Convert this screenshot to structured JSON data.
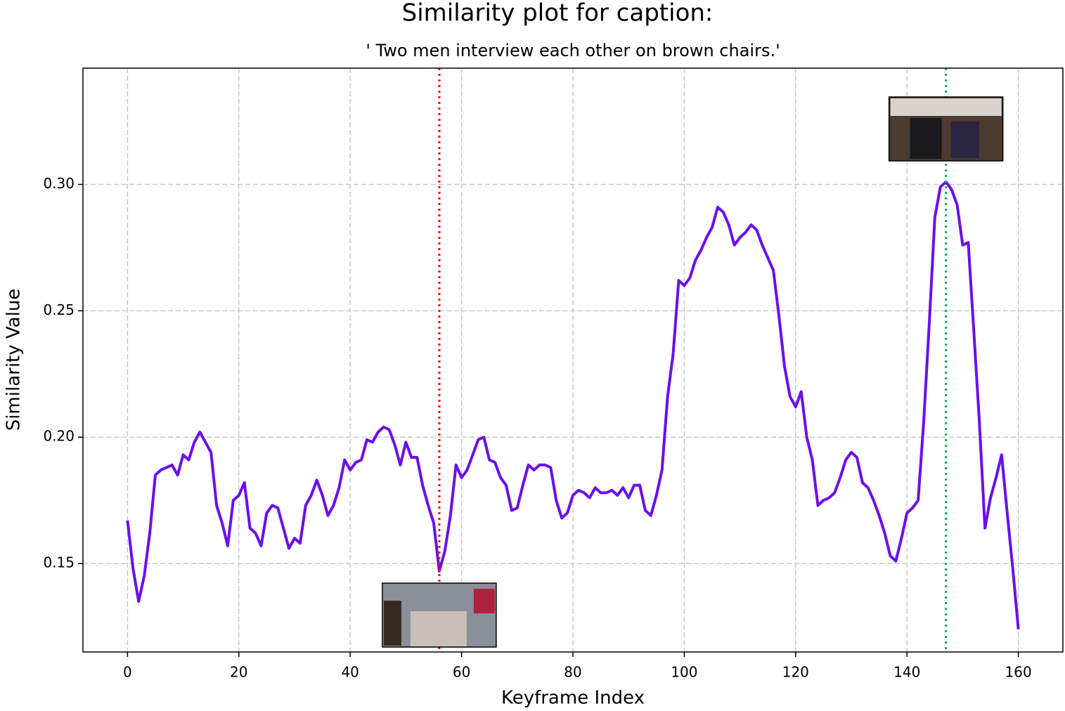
{
  "chart_data": {
    "type": "line",
    "title": "Similarity plot for caption:",
    "subtitle": "'  Two men interview each other on brown chairs.'",
    "x_label": "Keyframe Index",
    "y_label": "Similarity Value",
    "xlim": [
      -8,
      168
    ],
    "ylim": [
      0.115,
      0.346
    ],
    "xticks": [
      0,
      20,
      40,
      60,
      80,
      100,
      120,
      140,
      160
    ],
    "yticks": [
      0.15,
      {
        "value": 0.2,
        "label": "0.20"
      },
      0.25,
      {
        "value": 0.3,
        "label": "0.30"
      }
    ],
    "grid": true,
    "series": [
      {
        "color": "#6a0ff0",
        "values": [
          0.167,
          0.148,
          0.135,
          0.145,
          0.162,
          0.185,
          0.187,
          0.188,
          0.189,
          0.185,
          0.193,
          0.191,
          0.198,
          0.202,
          0.198,
          0.194,
          0.173,
          0.166,
          0.157,
          0.175,
          0.177,
          0.182,
          0.164,
          0.162,
          0.157,
          0.17,
          0.173,
          0.172,
          0.164,
          0.156,
          0.16,
          0.158,
          0.173,
          0.177,
          0.183,
          0.177,
          0.169,
          0.173,
          0.18,
          0.191,
          0.187,
          0.19,
          0.191,
          0.199,
          0.198,
          0.202,
          0.204,
          0.203,
          0.197,
          0.189,
          0.198,
          0.192,
          0.192,
          0.181,
          0.173,
          0.166,
          0.147,
          0.155,
          0.169,
          0.189,
          0.184,
          0.187,
          0.193,
          0.199,
          0.2,
          0.191,
          0.19,
          0.184,
          0.181,
          0.171,
          0.172,
          0.181,
          0.189,
          0.187,
          0.189,
          0.189,
          0.188,
          0.175,
          0.168,
          0.17,
          0.177,
          0.179,
          0.178,
          0.176,
          0.18,
          0.178,
          0.178,
          0.179,
          0.177,
          0.18,
          0.176,
          0.181,
          0.181,
          0.171,
          0.169,
          0.177,
          0.187,
          0.216,
          0.233,
          0.262,
          0.26,
          0.263,
          0.27,
          0.274,
          0.279,
          0.283,
          0.291,
          0.289,
          0.284,
          0.276,
          0.279,
          0.281,
          0.284,
          0.282,
          0.276,
          0.271,
          0.266,
          0.248,
          0.228,
          0.216,
          0.212,
          0.218,
          0.2,
          0.191,
          0.173,
          0.175,
          0.176,
          0.178,
          0.184,
          0.191,
          0.194,
          0.192,
          0.182,
          0.18,
          0.175,
          0.169,
          0.162,
          0.153,
          0.151,
          0.16,
          0.17,
          0.172,
          0.175,
          0.206,
          0.245,
          0.287,
          0.299,
          0.301,
          0.298,
          0.292,
          0.276,
          0.277,
          0.242,
          0.206,
          0.164,
          0.176,
          0.184,
          0.193,
          0.17,
          0.148,
          0.124
        ]
      }
    ],
    "vlines": [
      {
        "x": 56,
        "color": "#ff0000"
      },
      {
        "x": 147,
        "color": "#00b050"
      }
    ]
  }
}
